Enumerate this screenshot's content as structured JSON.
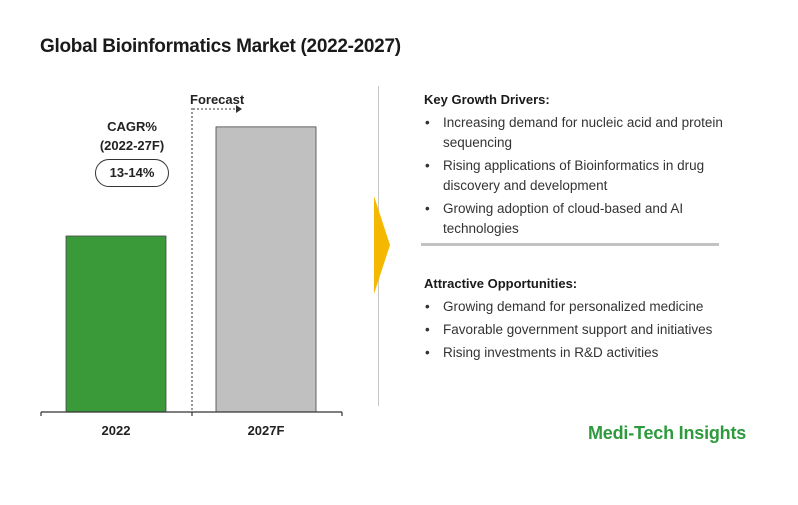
{
  "title": "Global Bioinformatics Market (2022-2027)",
  "cagr": {
    "label_line1": "CAGR%",
    "label_line2": "(2022-27F)",
    "value": "13-14%"
  },
  "forecast_label": "Forecast",
  "chart_data": {
    "type": "bar",
    "categories": [
      "2022",
      "2027F"
    ],
    "values": [
      1.0,
      1.62
    ],
    "colors": [
      "#3a9a3a",
      "#c0c0c0"
    ],
    "title": "Global Bioinformatics Market (2022-2027)",
    "xlabel": "",
    "ylabel": "",
    "grid": false
  },
  "drivers": {
    "heading": "Key Growth Drivers:",
    "items": [
      "Increasing demand for nucleic acid and protein sequencing",
      "Rising applications of Bioinformatics in drug discovery and development",
      "Growing adoption of cloud-based and  AI technologies"
    ]
  },
  "opportunities": {
    "heading": "Attractive Opportunities:",
    "items": [
      "Growing demand for personalized medicine",
      "Favorable government support and initiatives",
      "Rising investments in R&D activities"
    ]
  },
  "brand": "Medi-Tech Insights",
  "colors": {
    "accent_arrow": "#f5b800",
    "brand_green": "#2e9a3e"
  }
}
